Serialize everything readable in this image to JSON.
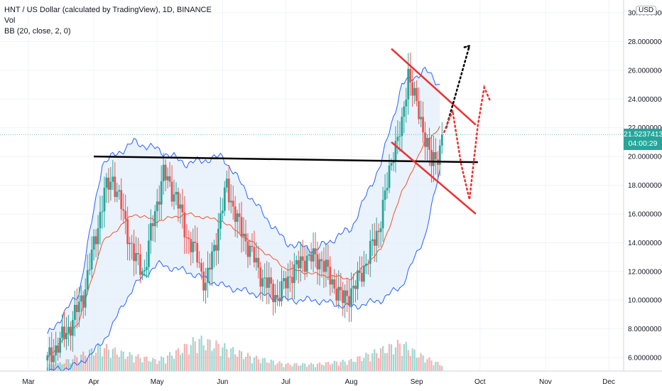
{
  "legend": {
    "symbol_line": "HNT / US Dollar (calculated by TradingView), 1D, BINANCE",
    "volume_label": "Vol",
    "bb_label": "BB (20, close, 2, 0)"
  },
  "currency_badge": "USD",
  "current_price": {
    "value": "21.5237413",
    "countdown": "04:00:29"
  },
  "colors": {
    "up": "#26a69a",
    "down": "#ef5350",
    "bb_band": "#2962ff",
    "bb_basis": "#f2542d",
    "bb_fill": "#e3eefb",
    "support_line": "#000000",
    "channel_lines": "#ef2f2f",
    "projection_dark": "#000000",
    "projection_red": "#ef2f2f",
    "price_tag": "#26a69a"
  },
  "chart_data": {
    "type": "candlestick",
    "title": "HNT / US Dollar (calculated by TradingView), 1D, BINANCE",
    "y_axis": {
      "scale": "linear",
      "range": [
        5.0,
        30.5
      ],
      "ticks": [
        "30.0000000",
        "28.0000000",
        "26.0000000",
        "24.0000000",
        "22.0000000",
        "20.0000000",
        "18.0000000",
        "16.0000000",
        "14.0000000",
        "12.0000000",
        "10.0000000",
        "8.0000000",
        "6.0000000"
      ]
    },
    "x_axis": {
      "labels": [
        "Mar",
        "Apr",
        "May",
        "Jun",
        "Jul",
        "Aug",
        "Sep",
        "Oct",
        "Nov",
        "Dec"
      ],
      "label_dates": [
        "2021-03-01",
        "2021-04-01",
        "2021-05-01",
        "2021-06-01",
        "2021-07-01",
        "2021-08-01",
        "2021-09-01",
        "2021-10-01",
        "2021-11-01",
        "2021-12-01"
      ],
      "range": [
        "2021-03-01",
        "2021-12-01"
      ]
    },
    "price_path": {
      "dates": [
        "2021-03-10",
        "2021-03-20",
        "2021-03-27",
        "2021-04-02",
        "2021-04-06",
        "2021-04-10",
        "2021-04-14",
        "2021-04-20",
        "2021-04-25",
        "2021-04-29",
        "2021-05-04",
        "2021-05-10",
        "2021-05-15",
        "2021-05-20",
        "2021-05-24",
        "2021-05-30",
        "2021-06-03",
        "2021-06-08",
        "2021-06-14",
        "2021-06-20",
        "2021-06-27",
        "2021-07-04",
        "2021-07-11",
        "2021-07-18",
        "2021-07-22",
        "2021-07-28",
        "2021-08-03",
        "2021-08-09",
        "2021-08-14",
        "2021-08-18",
        "2021-08-21",
        "2021-08-25",
        "2021-08-28",
        "2021-08-31",
        "2021-09-04",
        "2021-09-08",
        "2021-09-12",
        "2021-09-13"
      ],
      "closes": [
        5.8,
        8.0,
        10.3,
        14.5,
        17.5,
        18.5,
        16.5,
        13.0,
        12.0,
        15.5,
        18.8,
        17.2,
        14.5,
        13.0,
        11.0,
        15.0,
        18.0,
        15.5,
        13.5,
        11.5,
        10.2,
        12.0,
        13.0,
        12.8,
        11.5,
        10.0,
        11.0,
        13.0,
        15.0,
        18.0,
        20.5,
        22.0,
        26.0,
        24.0,
        22.0,
        19.5,
        20.5,
        21.52
      ]
    },
    "bollinger": {
      "dates": [
        "2021-03-10",
        "2021-03-25",
        "2021-04-05",
        "2021-04-20",
        "2021-05-01",
        "2021-05-15",
        "2021-06-01",
        "2021-06-15",
        "2021-07-01",
        "2021-07-15",
        "2021-08-01",
        "2021-08-15",
        "2021-08-25",
        "2021-09-05",
        "2021-09-12"
      ],
      "upper": [
        7.5,
        10.5,
        19.5,
        21.0,
        20.5,
        19.5,
        20.0,
        17.0,
        14.0,
        13.5,
        15.0,
        19.5,
        25.0,
        26.0,
        25.0
      ],
      "basis": [
        6.0,
        8.5,
        14.0,
        16.0,
        15.5,
        16.0,
        15.5,
        14.0,
        12.2,
        11.8,
        11.5,
        13.5,
        17.5,
        21.0,
        22.0
      ],
      "lower": [
        5.0,
        5.5,
        7.0,
        11.0,
        12.5,
        12.0,
        11.0,
        10.5,
        10.0,
        10.0,
        9.5,
        10.0,
        11.0,
        14.5,
        19.0
      ]
    },
    "volume": {
      "dates": [
        "2021-03-15",
        "2021-03-28",
        "2021-04-05",
        "2021-04-15",
        "2021-05-01",
        "2021-05-12",
        "2021-05-20",
        "2021-06-01",
        "2021-06-15",
        "2021-07-01",
        "2021-07-15",
        "2021-08-01",
        "2021-08-15",
        "2021-08-25",
        "2021-09-01",
        "2021-09-12"
      ],
      "relative": [
        0.2,
        0.5,
        0.7,
        0.5,
        0.3,
        0.6,
        0.9,
        0.7,
        0.4,
        0.2,
        0.2,
        0.3,
        0.6,
        0.8,
        0.5,
        0.2
      ]
    },
    "drawings": [
      {
        "kind": "support-line",
        "dates": [
          "2021-04-01",
          "2021-09-30"
        ],
        "prices": [
          20.0,
          19.6
        ]
      },
      {
        "kind": "channel-upper",
        "dates": [
          "2021-08-20",
          "2021-09-29"
        ],
        "prices": [
          27.5,
          22.2
        ]
      },
      {
        "kind": "channel-lower",
        "dates": [
          "2021-08-20",
          "2021-09-29"
        ],
        "prices": [
          21.0,
          16.0
        ]
      },
      {
        "kind": "projection-dark",
        "dates": [
          "2021-09-15",
          "2021-09-26"
        ],
        "prices": [
          22.0,
          27.7
        ]
      },
      {
        "kind": "projection-red",
        "dates": [
          "2021-09-14",
          "2021-09-18",
          "2021-09-22",
          "2021-09-26",
          "2021-09-30",
          "2021-10-03",
          "2021-10-06"
        ],
        "prices": [
          21.7,
          23.2,
          19.5,
          17.0,
          22.2,
          24.8,
          23.8
        ]
      }
    ],
    "last_price": 21.5237413,
    "grid": true,
    "legend_position": "top-left"
  }
}
